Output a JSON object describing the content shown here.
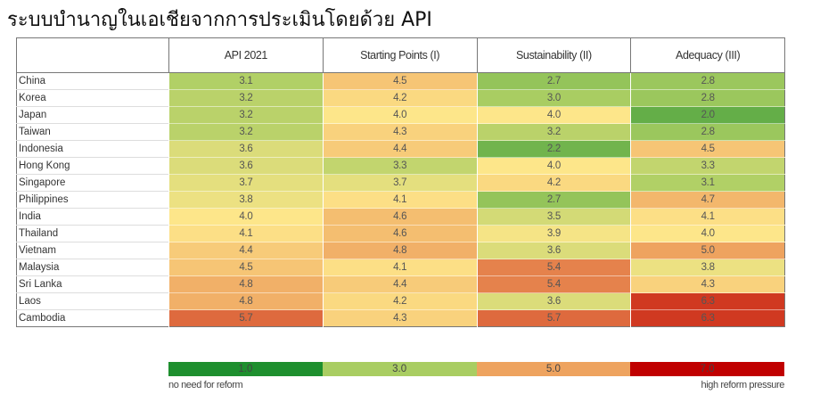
{
  "chart_data": {
    "type": "heatmap",
    "title": "ระบบบำนาญในเอเชียจากการประเมินโดยด้วย API",
    "columns": [
      "API 2021",
      "Starting Points (I)",
      "Sustainability (II)",
      "Adequacy (III)"
    ],
    "rows": [
      {
        "country": "China",
        "values": [
          3.1,
          4.5,
          2.7,
          2.8
        ]
      },
      {
        "country": "Korea",
        "values": [
          3.2,
          4.2,
          3.0,
          2.8
        ]
      },
      {
        "country": "Japan",
        "values": [
          3.2,
          4.0,
          4.0,
          2.0
        ]
      },
      {
        "country": "Taiwan",
        "values": [
          3.2,
          4.3,
          3.2,
          2.8
        ]
      },
      {
        "country": "Indonesia",
        "values": [
          3.6,
          4.4,
          2.2,
          4.5
        ]
      },
      {
        "country": "Hong Kong",
        "values": [
          3.6,
          3.3,
          4.0,
          3.3
        ]
      },
      {
        "country": "Singapore",
        "values": [
          3.7,
          3.7,
          4.2,
          3.1
        ]
      },
      {
        "country": "Philippines",
        "values": [
          3.8,
          4.1,
          2.7,
          4.7
        ]
      },
      {
        "country": "India",
        "values": [
          4.0,
          4.6,
          3.5,
          4.1
        ]
      },
      {
        "country": "Thailand",
        "values": [
          4.1,
          4.6,
          3.9,
          4.0
        ]
      },
      {
        "country": "Vietnam",
        "values": [
          4.4,
          4.8,
          3.6,
          5.0
        ]
      },
      {
        "country": "Malaysia",
        "values": [
          4.5,
          4.1,
          5.4,
          3.8
        ]
      },
      {
        "country": "Sri Lanka",
        "values": [
          4.8,
          4.4,
          5.4,
          4.3
        ]
      },
      {
        "country": "Laos",
        "values": [
          4.8,
          4.2,
          3.6,
          6.3
        ]
      },
      {
        "country": "Cambodia",
        "values": [
          5.7,
          4.3,
          5.7,
          6.3
        ]
      }
    ],
    "color_scale": {
      "stops": [
        {
          "value": 1.0,
          "color": "#1e8f2e"
        },
        {
          "value": 3.0,
          "color": "#a9cd62"
        },
        {
          "value": 4.0,
          "color": "#fde68a"
        },
        {
          "value": 5.0,
          "color": "#eea35f"
        },
        {
          "value": 7.0,
          "color": "#c00000"
        }
      ]
    },
    "legend": {
      "items": [
        {
          "value": "1.0",
          "color": "#1e8f2e"
        },
        {
          "value": "3.0",
          "color": "#a9cd62"
        },
        {
          "value": "5.0",
          "color": "#eea35f"
        },
        {
          "value": "7.0",
          "color": "#c00000"
        }
      ],
      "low_label": "no need for reform",
      "high_label": "high reform pressure"
    }
  }
}
